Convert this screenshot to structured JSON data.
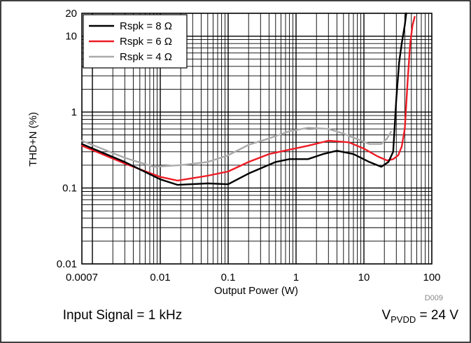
{
  "figure": {
    "code": "D009",
    "caption_left": "Input Signal = 1 kHz",
    "caption_right": {
      "prefix": "V",
      "subscript": "PVDD",
      "suffix": " = 24 V"
    }
  },
  "chart_data": {
    "type": "line",
    "title": "",
    "xlabel": "Output Power (W)",
    "ylabel": "THD+N (%)",
    "x_scale": "log",
    "y_scale": "log",
    "xlim": [
      0.0007,
      100
    ],
    "ylim": [
      0.01,
      20
    ],
    "x_ticks": [
      0.0007,
      0.01,
      0.1,
      1,
      10,
      100
    ],
    "x_tick_labels": [
      "0.0007",
      "0.01",
      "0.1",
      "1",
      "10",
      "100"
    ],
    "y_ticks": [
      0.01,
      0.1,
      1,
      10,
      20
    ],
    "y_tick_labels": [
      "0.01",
      "0.1",
      "1",
      "10",
      "20"
    ],
    "grid": true,
    "legend_position": "top-left",
    "series": [
      {
        "name": "Rspk = 8 Ω",
        "color": "#000000",
        "x": [
          0.0007,
          0.003,
          0.01,
          0.018,
          0.05,
          0.1,
          0.2,
          0.5,
          0.8,
          1.5,
          2.5,
          4,
          7,
          12,
          18,
          23,
          27,
          30,
          33,
          36,
          40,
          42
        ],
        "y": [
          0.38,
          0.22,
          0.13,
          0.11,
          0.115,
          0.112,
          0.155,
          0.22,
          0.24,
          0.24,
          0.28,
          0.31,
          0.28,
          0.22,
          0.19,
          0.22,
          0.3,
          1.5,
          4.5,
          8,
          14,
          20
        ]
      },
      {
        "name": "Rspk = 6 Ω",
        "color": "#ee1c25",
        "x": [
          0.0007,
          0.003,
          0.01,
          0.018,
          0.05,
          0.1,
          0.2,
          0.4,
          0.8,
          1.5,
          3,
          6,
          10,
          16,
          22,
          27,
          32,
          36,
          40,
          44,
          48,
          52,
          56
        ],
        "y": [
          0.36,
          0.21,
          0.14,
          0.125,
          0.145,
          0.165,
          0.22,
          0.28,
          0.32,
          0.36,
          0.42,
          0.4,
          0.33,
          0.26,
          0.23,
          0.24,
          0.27,
          0.35,
          0.6,
          2.5,
          8,
          14,
          18
        ]
      },
      {
        "name": "Rspk = 4 Ω",
        "color": "#aaaaaa",
        "x": [
          0.0007,
          0.003,
          0.008,
          0.02,
          0.05,
          0.1,
          0.2,
          0.4,
          0.8,
          1.5,
          3,
          5,
          8,
          12,
          18,
          22,
          25
        ],
        "y": [
          0.42,
          0.25,
          0.19,
          0.2,
          0.22,
          0.27,
          0.37,
          0.45,
          0.56,
          0.62,
          0.6,
          0.52,
          0.44,
          0.38,
          0.38,
          0.45,
          0.55
        ]
      }
    ]
  }
}
